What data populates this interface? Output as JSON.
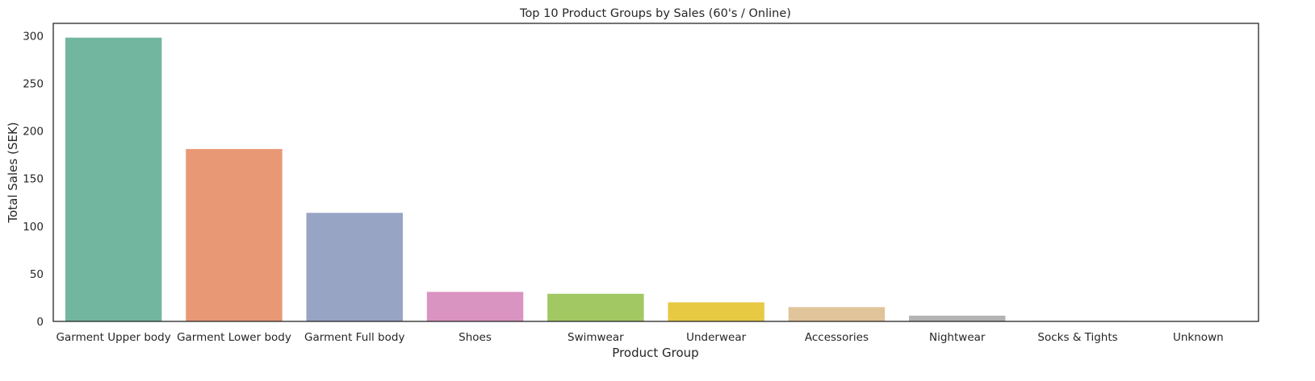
{
  "chart_data": {
    "type": "bar",
    "title": "Top 10 Product Groups by Sales (60's / Online)",
    "xlabel": "Product Group",
    "ylabel": "Total Sales (SEK)",
    "categories": [
      "Garment Upper body",
      "Garment Lower body",
      "Garment Full body",
      "Shoes",
      "Swimwear",
      "Underwear",
      "Accessories",
      "Nightwear",
      "Socks & Tights",
      "Unknown"
    ],
    "values": [
      298,
      181,
      114,
      31,
      29,
      20,
      15,
      6,
      0.5,
      0.3
    ],
    "colors": [
      "#73b6a0",
      "#e99876",
      "#97a4c4",
      "#da94c1",
      "#a1c862",
      "#e8c944",
      "#e0c49a",
      "#b3b3b3",
      "#b3b3b3",
      "#b3b3b3"
    ],
    "ylim": [
      0,
      313
    ],
    "yticks": [
      0,
      50,
      100,
      150,
      200,
      250,
      300
    ],
    "grid": false,
    "legend": "none"
  }
}
